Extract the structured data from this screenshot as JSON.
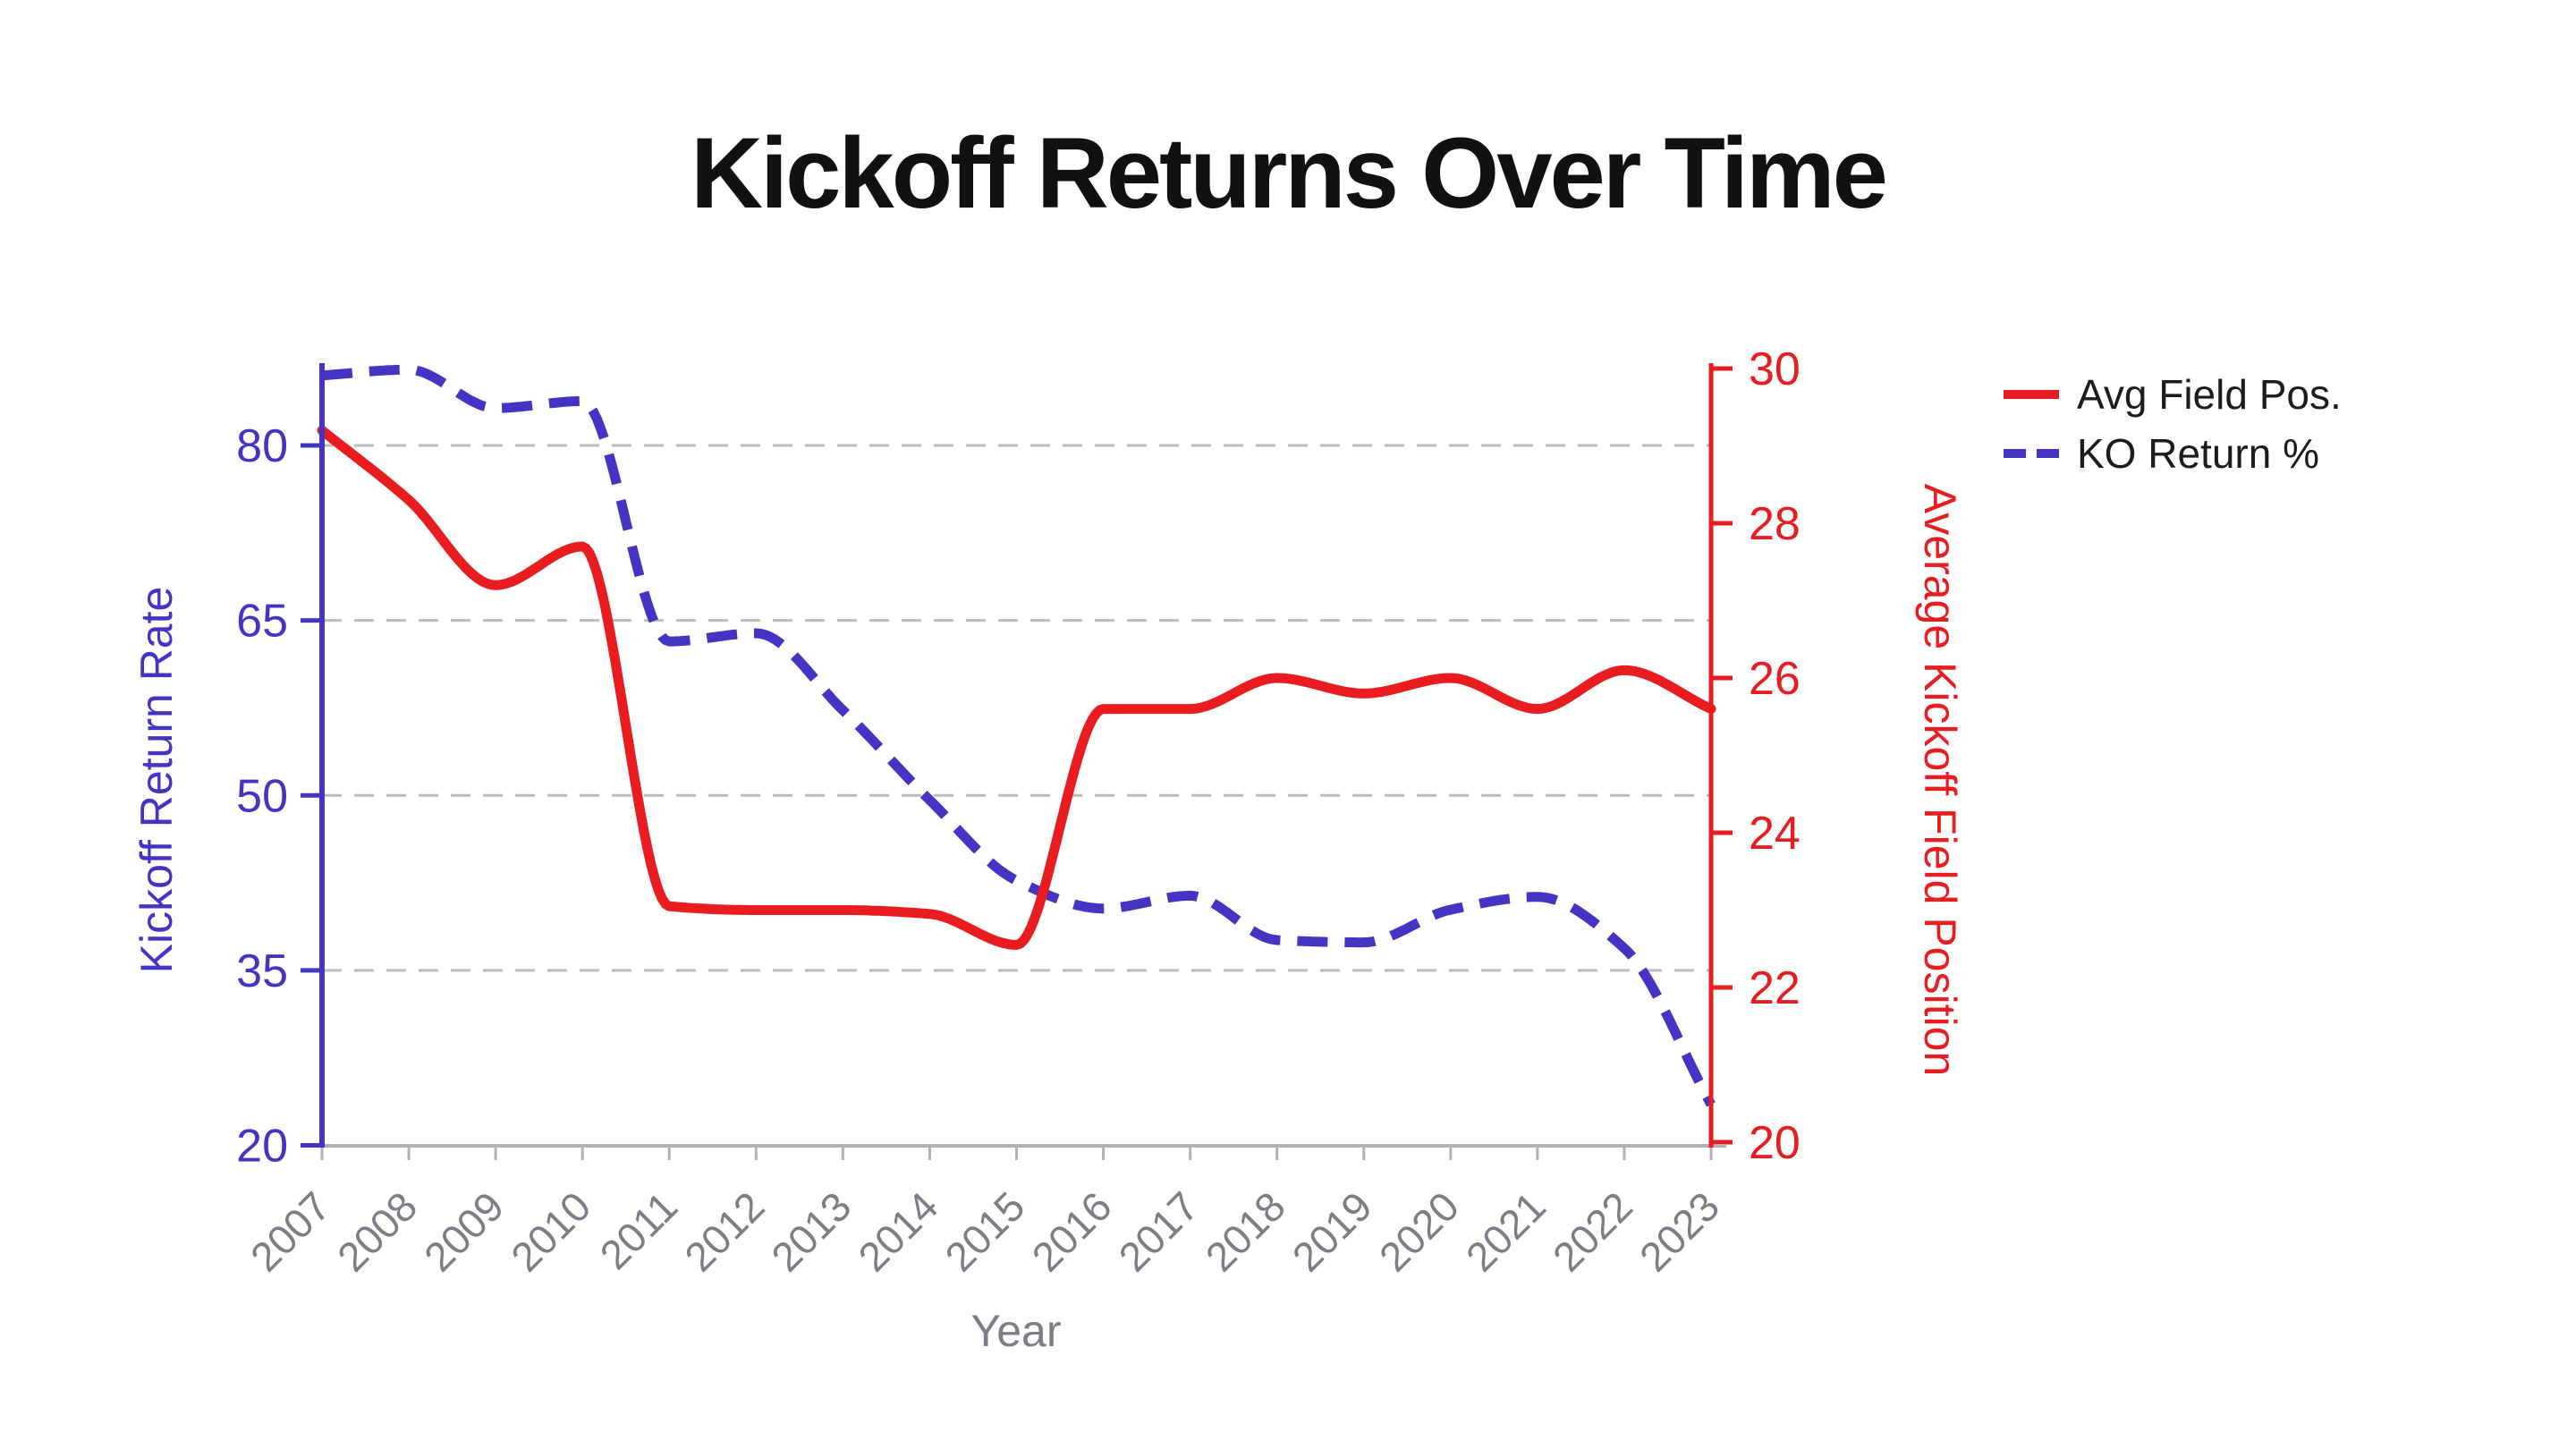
{
  "title": "Kickoff Returns Over Time",
  "chart_data": {
    "type": "line",
    "x": [
      2007,
      2008,
      2009,
      2010,
      2011,
      2012,
      2013,
      2014,
      2015,
      2016,
      2017,
      2018,
      2019,
      2020,
      2021,
      2022,
      2023
    ],
    "xlabel": "Year",
    "series": [
      {
        "name": "Avg Field Pos.",
        "axis": "right",
        "style": "solid",
        "color": "#e91c20",
        "values": [
          29.2,
          28.3,
          27.2,
          27.7,
          23.05,
          23.0,
          23.0,
          22.95,
          22.55,
          25.6,
          25.6,
          26.0,
          25.8,
          26.0,
          25.6,
          26.1,
          25.6
        ]
      },
      {
        "name": "KO Return %",
        "axis": "left",
        "style": "dashed",
        "color": "#4534c4",
        "values": [
          86.0,
          86.5,
          83.2,
          83.8,
          63.2,
          63.9,
          57.3,
          49.6,
          42.7,
          40.3,
          41.4,
          37.6,
          37.4,
          40.2,
          41.3,
          36.9,
          23.5
        ]
      }
    ],
    "left_axis": {
      "label": "Kickoff Return Rate",
      "color": "#4534c4",
      "ticks": [
        20,
        35,
        50,
        65,
        80
      ],
      "range": [
        20,
        87
      ]
    },
    "right_axis": {
      "label": "Average Kickoff Field Position",
      "color": "#e91c20",
      "ticks": [
        20,
        22,
        24,
        26,
        28,
        30
      ],
      "range": [
        20,
        30
      ]
    },
    "grid": "horizontal dashed gridlines at left-axis ticks 35/50/65/80",
    "legend_position": "upper right, outside plot"
  },
  "colors": {
    "background": "#ffffff",
    "title_text": "#111111",
    "grid_line": "#bcbcbc",
    "x_axis_line": "#b2b2b6",
    "x_tick_label": "#7d7d87",
    "legend_text": "#1c1c1c"
  }
}
